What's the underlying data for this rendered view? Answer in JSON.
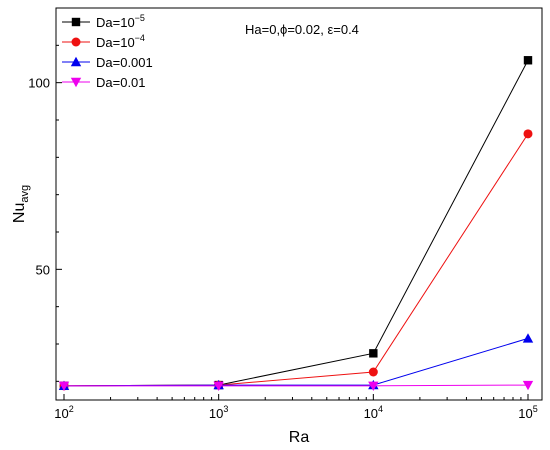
{
  "chart_data": {
    "type": "line",
    "xlabel": "Ra",
    "ylabel": {
      "main": "Nu",
      "sub": "avg"
    },
    "x_scale": "log",
    "xlim": [
      100,
      100000
    ],
    "ylim": [
      15,
      120
    ],
    "x": [
      100,
      1000,
      10000,
      100000
    ],
    "x_ticks": [
      {
        "base": "10",
        "exp": "2"
      },
      {
        "base": "10",
        "exp": "3"
      },
      {
        "base": "10",
        "exp": "4"
      },
      {
        "base": "10",
        "exp": "5"
      }
    ],
    "y_ticks": [
      50,
      100
    ],
    "annotation": "Ha=0,ϕ=0.02, ε=0.4",
    "legend_position": "top-left",
    "series": [
      {
        "name": "Da=10",
        "name_exp": "−5",
        "marker": "square",
        "color": "#000000",
        "values": [
          18.8,
          19.0,
          27.5,
          106.0
        ]
      },
      {
        "name": "Da=10",
        "name_exp": "−4",
        "marker": "circle",
        "color": "#ee1111",
        "values": [
          18.8,
          19.0,
          22.5,
          86.3
        ]
      },
      {
        "name": "Da=0.001",
        "name_exp": "",
        "marker": "triangle-up",
        "color": "#0000ee",
        "values": [
          18.8,
          19.0,
          19.0,
          31.5
        ]
      },
      {
        "name": "Da=0.01",
        "name_exp": "",
        "marker": "triangle-down",
        "color": "#ee00ee",
        "values": [
          18.8,
          18.8,
          18.8,
          19.0
        ]
      }
    ]
  }
}
